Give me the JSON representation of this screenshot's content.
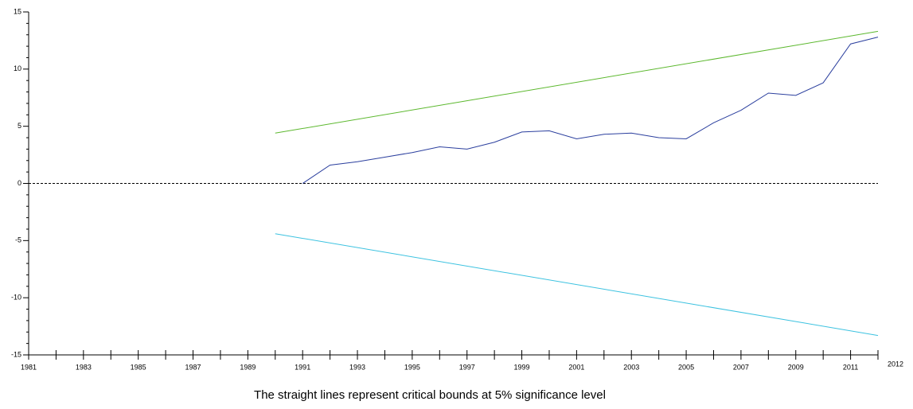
{
  "chart_data": {
    "type": "line",
    "annotation": "The straight lines represent critical bounds at 5% significance level",
    "xlim": [
      1981,
      2012
    ],
    "ylim": [
      -15,
      15
    ],
    "xticks": [
      1981,
      1983,
      1985,
      1987,
      1989,
      1991,
      1993,
      1995,
      1997,
      1999,
      2001,
      2003,
      2005,
      2007,
      2009,
      2011,
      2012
    ],
    "yticks": [
      -15,
      -10,
      -5,
      0,
      5,
      10,
      15
    ],
    "xminor": [
      1982,
      1984,
      1986,
      1988,
      1990,
      1992,
      1994,
      1996,
      1998,
      2000,
      2002,
      2004,
      2006,
      2008,
      2010
    ],
    "yminor": [
      -14,
      -13,
      -12,
      -11,
      -9,
      -8,
      -7,
      -6,
      -4,
      -3,
      -2,
      -1,
      1,
      2,
      3,
      4,
      6,
      7,
      8,
      9,
      11,
      12,
      13,
      14
    ],
    "zero_line": 0,
    "series": [
      {
        "color": "#2b3f9e",
        "x": [
          1991,
          1992,
          1993,
          1994,
          1995,
          1996,
          1997,
          1998,
          1999,
          2000,
          2001,
          2002,
          2003,
          2004,
          2005,
          2006,
          2007,
          2008,
          2009,
          2010,
          2011,
          2012
        ],
        "values": [
          0,
          1.6,
          1.9,
          2.3,
          2.7,
          3.2,
          3.0,
          3.6,
          4.5,
          4.6,
          3.9,
          4.3,
          4.4,
          4.0,
          3.9,
          5.3,
          6.4,
          7.9,
          7.7,
          8.8,
          12.2,
          12.8
        ]
      },
      {
        "color": "#5cb82e",
        "x": [
          1990,
          2012
        ],
        "values": [
          4.4,
          13.3
        ]
      },
      {
        "color": "#3cc2e0",
        "x": [
          1990,
          2012
        ],
        "values": [
          -4.4,
          -13.3
        ]
      }
    ]
  }
}
